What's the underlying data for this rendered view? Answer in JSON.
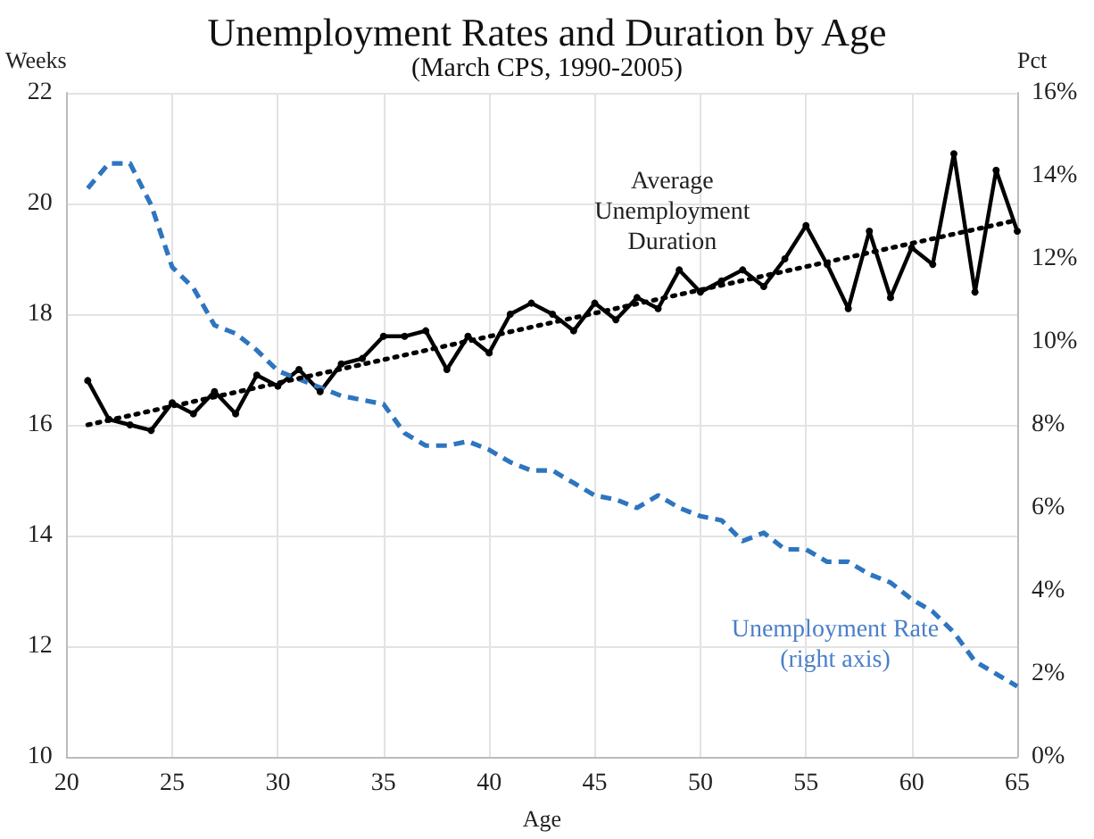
{
  "chart_data": {
    "type": "line",
    "title": "Unemployment Rates and Duration by Age",
    "subtitle": "(March CPS, 1990-2005)",
    "xlabel": "Age",
    "ylabel": "Weeks",
    "y2label": "Pct",
    "x": [
      21,
      22,
      23,
      24,
      25,
      26,
      27,
      28,
      29,
      30,
      31,
      32,
      33,
      34,
      35,
      36,
      37,
      38,
      39,
      40,
      41,
      42,
      43,
      44,
      45,
      46,
      47,
      48,
      49,
      50,
      51,
      52,
      53,
      54,
      55,
      56,
      57,
      58,
      59,
      60,
      61,
      62,
      63,
      64,
      65
    ],
    "series": [
      {
        "name": "Average\nUnemployment\nDuration",
        "color": "#000000",
        "line_style": "solid",
        "marker": "circle",
        "values": [
          16.8,
          16.1,
          16.0,
          15.9,
          16.4,
          16.2,
          16.6,
          16.2,
          16.9,
          16.7,
          17.0,
          16.6,
          17.1,
          17.2,
          17.6,
          17.6,
          17.7,
          17.0,
          17.6,
          17.3,
          18.0,
          18.2,
          18.0,
          17.7,
          18.2,
          17.9,
          18.3,
          18.1,
          18.8,
          18.4,
          18.6,
          18.8,
          18.5,
          19.0,
          19.6,
          18.9,
          18.1,
          19.5,
          18.3,
          19.2,
          18.9,
          20.9,
          18.4,
          20.6,
          19.5
        ]
      },
      {
        "name": "Unemployment Rate\n(right axis)",
        "color": "#2e75c0",
        "line_style": "dashed",
        "marker": "none",
        "axis": "y2",
        "values": [
          13.7,
          14.3,
          14.3,
          13.3,
          11.8,
          11.3,
          10.4,
          10.2,
          9.8,
          9.3,
          9.1,
          8.9,
          8.7,
          8.6,
          8.5,
          7.8,
          7.5,
          7.5,
          7.6,
          7.4,
          7.1,
          6.9,
          6.9,
          6.6,
          6.3,
          6.2,
          6.0,
          6.3,
          6.0,
          5.8,
          5.7,
          5.2,
          5.4,
          5.0,
          5.0,
          4.7,
          4.7,
          4.4,
          4.2,
          3.8,
          3.5,
          3.0,
          2.3,
          2.0,
          1.7
        ]
      },
      {
        "type": "line",
        "color": "#000000",
        "line_style": "dotted",
        "marker": "none",
        "x": [
          21,
          65
        ],
        "values": [
          16.0,
          19.7
        ]
      }
    ],
    "xlim": [
      20,
      65
    ],
    "xticks": [
      20,
      25,
      30,
      35,
      40,
      45,
      50,
      55,
      60,
      65
    ],
    "ylim": [
      10,
      22
    ],
    "yticks": [
      10,
      12,
      14,
      16,
      18,
      20,
      22
    ],
    "y2lim": [
      0,
      16
    ],
    "y2ticks": [
      {
        "value": 0,
        "label": "0%"
      },
      {
        "value": 2,
        "label": "2%"
      },
      {
        "value": 4,
        "label": "4%"
      },
      {
        "value": 6,
        "label": "6%"
      },
      {
        "value": 8,
        "label": "8%"
      },
      {
        "value": 10,
        "label": "10%"
      },
      {
        "value": 12,
        "label": "12%"
      },
      {
        "value": 14,
        "label": "14%"
      },
      {
        "value": 16,
        "label": "16%"
      }
    ],
    "grid": true,
    "legend": false
  }
}
